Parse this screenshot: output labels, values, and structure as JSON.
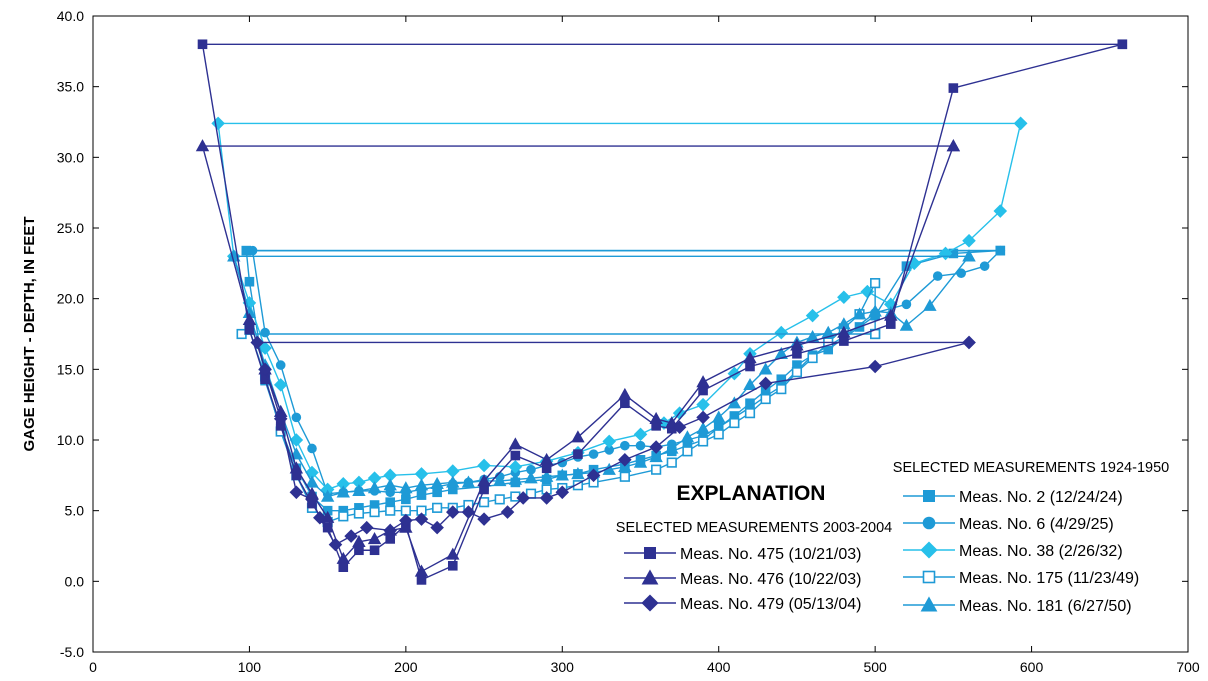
{
  "chart_data": {
    "type": "line",
    "title": "",
    "xlabel": "",
    "ylabel": "GAGE HEIGHT - DEPTH, IN FEET",
    "xlim": [
      0,
      700
    ],
    "ylim": [
      -5,
      40
    ],
    "x_ticks": [
      0,
      100,
      200,
      300,
      400,
      500,
      600,
      700
    ],
    "x_tick_labels": [
      "0",
      "100",
      "200",
      "300",
      "400",
      "500",
      "600",
      "700"
    ],
    "y_ticks": [
      -5,
      0,
      5,
      10,
      15,
      20,
      25,
      30,
      35,
      40
    ],
    "y_tick_labels": [
      "-5.0",
      "0.0",
      "5.0",
      "10.0",
      "15.0",
      "20.0",
      "25.0",
      "30.0",
      "35.0",
      "40.0"
    ],
    "grid": false,
    "legend": {
      "title": "EXPLANATION",
      "groups": [
        {
          "label": "SELECTED MEASUREMENTS 2003-2004",
          "series": [
            0,
            1,
            2
          ]
        },
        {
          "label": "SELECTED MEASUREMENTS 1924-1950",
          "series": [
            3,
            4,
            5,
            6,
            7
          ]
        }
      ]
    },
    "series": [
      {
        "name": "Meas. No. 475 (10/21/03)",
        "color": "#2e3192",
        "marker": "square",
        "filled": true,
        "points": [
          [
            658,
            38.0
          ],
          [
            70,
            38.0
          ],
          [
            100,
            17.8
          ],
          [
            110,
            14.3
          ],
          [
            120,
            11.0
          ],
          [
            130,
            7.5
          ],
          [
            140,
            5.5
          ],
          [
            150,
            3.8
          ],
          [
            160,
            1.0
          ],
          [
            170,
            2.2
          ],
          [
            180,
            2.2
          ],
          [
            190,
            3.0
          ],
          [
            200,
            4.0
          ],
          [
            210,
            0.1
          ],
          [
            230,
            1.1
          ],
          [
            250,
            6.5
          ],
          [
            270,
            8.9
          ],
          [
            290,
            8.0
          ],
          [
            310,
            9.0
          ],
          [
            340,
            12.6
          ],
          [
            360,
            11.0
          ],
          [
            370,
            10.8
          ],
          [
            390,
            13.5
          ],
          [
            420,
            15.2
          ],
          [
            450,
            16.1
          ],
          [
            480,
            17.0
          ],
          [
            510,
            18.2
          ],
          [
            550,
            34.9
          ],
          [
            658,
            38.0
          ]
        ]
      },
      {
        "name": "Meas. No. 476 (10/22/03)",
        "color": "#2e3192",
        "marker": "triangle",
        "filled": true,
        "points": [
          [
            550,
            30.8
          ],
          [
            70,
            30.8
          ],
          [
            100,
            18.5
          ],
          [
            110,
            15.0
          ],
          [
            120,
            12.0
          ],
          [
            130,
            8.0
          ],
          [
            140,
            6.2
          ],
          [
            150,
            4.5
          ],
          [
            160,
            1.6
          ],
          [
            170,
            2.8
          ],
          [
            180,
            3.0
          ],
          [
            190,
            3.6
          ],
          [
            200,
            3.8
          ],
          [
            210,
            0.7
          ],
          [
            230,
            1.9
          ],
          [
            250,
            7.1
          ],
          [
            270,
            9.7
          ],
          [
            290,
            8.6
          ],
          [
            310,
            10.2
          ],
          [
            340,
            13.2
          ],
          [
            360,
            11.5
          ],
          [
            370,
            11.2
          ],
          [
            390,
            14.1
          ],
          [
            420,
            15.8
          ],
          [
            450,
            16.7
          ],
          [
            480,
            17.6
          ],
          [
            510,
            18.8
          ],
          [
            550,
            30.8
          ]
        ]
      },
      {
        "name": "Meas. No. 479 (05/13/04)",
        "color": "#2e3192",
        "marker": "diamond",
        "filled": true,
        "points": [
          [
            560,
            16.9
          ],
          [
            105,
            16.9
          ],
          [
            110,
            15.0
          ],
          [
            120,
            11.5
          ],
          [
            130,
            6.3
          ],
          [
            140,
            5.8
          ],
          [
            145,
            4.5
          ],
          [
            155,
            2.6
          ],
          [
            165,
            3.2
          ],
          [
            175,
            3.8
          ],
          [
            190,
            3.6
          ],
          [
            200,
            4.3
          ],
          [
            210,
            4.4
          ],
          [
            220,
            3.8
          ],
          [
            230,
            4.9
          ],
          [
            240,
            4.9
          ],
          [
            250,
            4.4
          ],
          [
            265,
            4.9
          ],
          [
            275,
            5.9
          ],
          [
            290,
            5.9
          ],
          [
            300,
            6.3
          ],
          [
            320,
            7.5
          ],
          [
            340,
            8.6
          ],
          [
            360,
            9.5
          ],
          [
            375,
            10.9
          ],
          [
            390,
            11.6
          ],
          [
            430,
            14.0
          ],
          [
            500,
            15.2
          ],
          [
            560,
            16.9
          ]
        ]
      },
      {
        "name": "Meas. No. 2 (12/24/24)",
        "color": "#1e9ad6",
        "marker": "square",
        "filled": true,
        "points": [
          [
            580,
            23.4
          ],
          [
            98,
            23.4
          ],
          [
            100,
            21.2
          ],
          [
            110,
            14.2
          ],
          [
            120,
            10.8
          ],
          [
            130,
            8.0
          ],
          [
            140,
            6.0
          ],
          [
            150,
            5.0
          ],
          [
            160,
            5.0
          ],
          [
            170,
            5.2
          ],
          [
            180,
            5.4
          ],
          [
            190,
            5.6
          ],
          [
            200,
            5.8
          ],
          [
            210,
            6.1
          ],
          [
            220,
            6.3
          ],
          [
            230,
            6.5
          ],
          [
            250,
            6.7
          ],
          [
            270,
            7.0
          ],
          [
            290,
            7.2
          ],
          [
            300,
            7.5
          ],
          [
            310,
            7.6
          ],
          [
            320,
            7.9
          ],
          [
            340,
            8.3
          ],
          [
            350,
            8.6
          ],
          [
            360,
            8.9
          ],
          [
            370,
            9.2
          ],
          [
            380,
            9.6
          ],
          [
            390,
            10.0
          ],
          [
            400,
            10.9
          ],
          [
            410,
            11.7
          ],
          [
            420,
            12.6
          ],
          [
            430,
            13.5
          ],
          [
            440,
            14.3
          ],
          [
            450,
            15.3
          ],
          [
            460,
            16.0
          ],
          [
            470,
            16.4
          ],
          [
            480,
            17.2
          ],
          [
            490,
            18.0
          ],
          [
            500,
            18.8
          ],
          [
            520,
            22.3
          ],
          [
            550,
            23.2
          ],
          [
            580,
            23.4
          ]
        ]
      },
      {
        "name": "Meas. No. 6 (4/29/25)",
        "color": "#1e9ad6",
        "marker": "circle",
        "filled": true,
        "points": [
          [
            580,
            23.4
          ],
          [
            102,
            23.4
          ],
          [
            110,
            17.6
          ],
          [
            120,
            15.3
          ],
          [
            130,
            11.6
          ],
          [
            140,
            9.4
          ],
          [
            150,
            6.2
          ],
          [
            160,
            6.3
          ],
          [
            170,
            6.4
          ],
          [
            180,
            6.4
          ],
          [
            190,
            6.3
          ],
          [
            200,
            6.3
          ],
          [
            210,
            6.5
          ],
          [
            220,
            6.7
          ],
          [
            230,
            6.9
          ],
          [
            240,
            7.0
          ],
          [
            250,
            7.2
          ],
          [
            260,
            7.4
          ],
          [
            270,
            7.7
          ],
          [
            280,
            7.9
          ],
          [
            290,
            8.2
          ],
          [
            300,
            8.4
          ],
          [
            310,
            8.8
          ],
          [
            320,
            9.0
          ],
          [
            330,
            9.3
          ],
          [
            340,
            9.6
          ],
          [
            350,
            9.6
          ],
          [
            360,
            9.5
          ],
          [
            370,
            9.7
          ],
          [
            380,
            10.0
          ],
          [
            390,
            10.3
          ],
          [
            400,
            10.9
          ],
          [
            410,
            11.6
          ],
          [
            420,
            12.3
          ],
          [
            430,
            13.1
          ],
          [
            440,
            13.8
          ],
          [
            450,
            14.9
          ],
          [
            460,
            16.0
          ],
          [
            480,
            17.3
          ],
          [
            500,
            19.0
          ],
          [
            520,
            19.6
          ],
          [
            540,
            21.6
          ],
          [
            555,
            21.8
          ],
          [
            570,
            22.3
          ],
          [
            580,
            23.4
          ]
        ]
      },
      {
        "name": "Meas. No. 38 (2/26/32)",
        "color": "#27c0ea",
        "marker": "diamond",
        "filled": true,
        "points": [
          [
            593,
            32.4
          ],
          [
            80,
            32.4
          ],
          [
            90,
            23.0
          ],
          [
            100,
            19.7
          ],
          [
            110,
            16.5
          ],
          [
            120,
            13.9
          ],
          [
            130,
            10.0
          ],
          [
            140,
            7.7
          ],
          [
            150,
            6.5
          ],
          [
            160,
            6.9
          ],
          [
            170,
            7.0
          ],
          [
            180,
            7.3
          ],
          [
            190,
            7.5
          ],
          [
            210,
            7.6
          ],
          [
            230,
            7.8
          ],
          [
            250,
            8.2
          ],
          [
            270,
            8.1
          ],
          [
            290,
            8.5
          ],
          [
            310,
            9.1
          ],
          [
            330,
            9.9
          ],
          [
            350,
            10.4
          ],
          [
            365,
            11.2
          ],
          [
            375,
            11.9
          ],
          [
            390,
            12.5
          ],
          [
            410,
            14.7
          ],
          [
            420,
            16.1
          ],
          [
            440,
            17.6
          ],
          [
            460,
            18.8
          ],
          [
            480,
            20.1
          ],
          [
            495,
            20.5
          ],
          [
            510,
            19.6
          ],
          [
            525,
            22.5
          ],
          [
            545,
            23.2
          ],
          [
            560,
            24.1
          ],
          [
            580,
            26.2
          ],
          [
            593,
            32.4
          ]
        ]
      },
      {
        "name": "Meas. No. 175 (11/23/49)",
        "color": "#1e9ad6",
        "marker": "square",
        "filled": false,
        "points": [
          [
            500,
            17.5
          ],
          [
            95,
            17.5
          ],
          [
            100,
            17.8
          ],
          [
            110,
            14.5
          ],
          [
            120,
            10.6
          ],
          [
            130,
            7.5
          ],
          [
            140,
            5.2
          ],
          [
            150,
            4.2
          ],
          [
            160,
            4.6
          ],
          [
            170,
            4.8
          ],
          [
            180,
            4.9
          ],
          [
            190,
            5.0
          ],
          [
            200,
            5.0
          ],
          [
            210,
            5.0
          ],
          [
            220,
            5.2
          ],
          [
            230,
            5.2
          ],
          [
            240,
            5.4
          ],
          [
            250,
            5.6
          ],
          [
            260,
            5.8
          ],
          [
            270,
            6.0
          ],
          [
            280,
            6.2
          ],
          [
            290,
            6.5
          ],
          [
            300,
            6.6
          ],
          [
            310,
            6.8
          ],
          [
            320,
            7.0
          ],
          [
            340,
            7.4
          ],
          [
            360,
            7.9
          ],
          [
            370,
            8.4
          ],
          [
            380,
            9.2
          ],
          [
            390,
            9.9
          ],
          [
            400,
            10.4
          ],
          [
            410,
            11.2
          ],
          [
            420,
            11.9
          ],
          [
            430,
            12.9
          ],
          [
            440,
            13.6
          ],
          [
            450,
            14.8
          ],
          [
            460,
            15.8
          ],
          [
            470,
            16.9
          ],
          [
            480,
            17.9
          ],
          [
            490,
            18.9
          ],
          [
            500,
            21.1
          ],
          [
            500,
            17.5
          ]
        ]
      },
      {
        "name": "Meas. No. 181 (6/27/50)",
        "color": "#1e9ad6",
        "marker": "triangle",
        "filled": true,
        "points": [
          [
            560,
            23.0
          ],
          [
            90,
            23.0
          ],
          [
            100,
            19.0
          ],
          [
            110,
            15.3
          ],
          [
            120,
            12.0
          ],
          [
            130,
            9.0
          ],
          [
            140,
            7.0
          ],
          [
            150,
            6.0
          ],
          [
            160,
            6.3
          ],
          [
            170,
            6.4
          ],
          [
            180,
            6.6
          ],
          [
            190,
            6.8
          ],
          [
            200,
            6.6
          ],
          [
            210,
            6.8
          ],
          [
            220,
            6.9
          ],
          [
            230,
            7.0
          ],
          [
            240,
            7.0
          ],
          [
            250,
            7.1
          ],
          [
            260,
            7.1
          ],
          [
            270,
            7.2
          ],
          [
            280,
            7.3
          ],
          [
            290,
            7.4
          ],
          [
            300,
            7.5
          ],
          [
            310,
            7.6
          ],
          [
            320,
            7.7
          ],
          [
            330,
            7.9
          ],
          [
            340,
            8.1
          ],
          [
            350,
            8.4
          ],
          [
            360,
            8.8
          ],
          [
            370,
            9.4
          ],
          [
            380,
            10.2
          ],
          [
            390,
            10.8
          ],
          [
            400,
            11.6
          ],
          [
            410,
            12.6
          ],
          [
            420,
            13.9
          ],
          [
            430,
            15.0
          ],
          [
            440,
            16.1
          ],
          [
            450,
            16.9
          ],
          [
            460,
            17.3
          ],
          [
            470,
            17.6
          ],
          [
            480,
            18.2
          ],
          [
            490,
            18.9
          ],
          [
            500,
            19.1
          ],
          [
            510,
            19.0
          ],
          [
            520,
            18.1
          ],
          [
            535,
            19.5
          ],
          [
            560,
            23.0
          ]
        ]
      }
    ]
  }
}
